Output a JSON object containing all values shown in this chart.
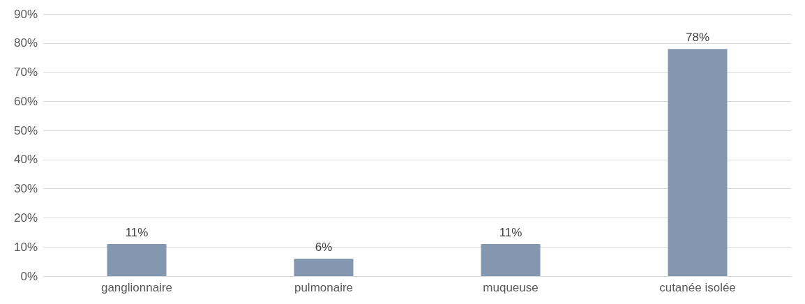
{
  "chart_data": {
    "type": "bar",
    "categories": [
      "ganglionnaire",
      "pulmonaire",
      "muqueuse",
      "cutanée isolée"
    ],
    "values": [
      11,
      6,
      11,
      78
    ],
    "color": "#8497b0",
    "value_labels": [
      "11%",
      "6%",
      "11%",
      "78%"
    ],
    "ylim": [
      0,
      90
    ],
    "yticks": [
      {
        "value": 0,
        "label": "0%"
      },
      {
        "value": 10,
        "label": "10%"
      },
      {
        "value": 20,
        "label": "20%"
      },
      {
        "value": 30,
        "label": "30%"
      },
      {
        "value": 40,
        "label": "40%"
      },
      {
        "value": 50,
        "label": "50%"
      },
      {
        "value": 60,
        "label": "60%"
      },
      {
        "value": 70,
        "label": "70%"
      },
      {
        "value": 80,
        "label": "80%"
      },
      {
        "value": 90,
        "label": "90%"
      }
    ],
    "grid": "y"
  }
}
